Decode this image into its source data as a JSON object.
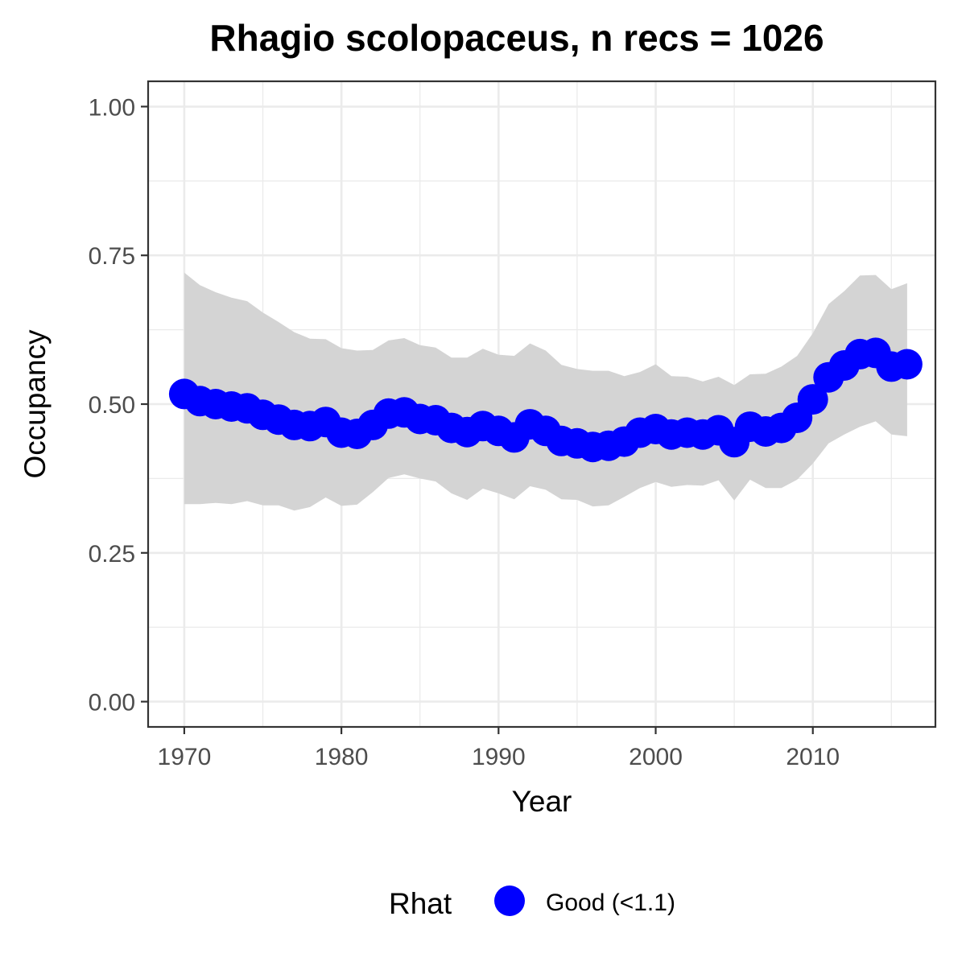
{
  "chart_data": {
    "type": "line",
    "title": "Rhagio scolopaceus, n recs = 1026",
    "xlabel": "Year",
    "ylabel": "Occupancy",
    "xlim": [
      1967.7,
      2017.8
    ],
    "ylim": [
      -0.0425,
      1.0425
    ],
    "x_ticks": [
      1970,
      1980,
      1990,
      2000,
      2010
    ],
    "x_tick_labels": [
      "1970",
      "1980",
      "1990",
      "2000",
      "2010"
    ],
    "y_ticks": [
      0,
      0.25,
      0.5,
      0.75,
      1
    ],
    "y_tick_labels": [
      "0.00",
      "0.25",
      "0.50",
      "0.75",
      "1.00"
    ],
    "grid": true,
    "legend": {
      "title": "Rhat",
      "position": "bottom",
      "entries": [
        {
          "label": "Good (<1.1)",
          "color": "#0000ff"
        }
      ]
    },
    "x": [
      1970,
      1971,
      1972,
      1973,
      1974,
      1975,
      1976,
      1977,
      1978,
      1979,
      1980,
      1981,
      1982,
      1983,
      1984,
      1985,
      1986,
      1987,
      1988,
      1989,
      1990,
      1991,
      1992,
      1993,
      1994,
      1995,
      1996,
      1997,
      1998,
      1999,
      2000,
      2001,
      2002,
      2003,
      2004,
      2005,
      2006,
      2007,
      2008,
      2009,
      2010,
      2011,
      2012,
      2013,
      2014,
      2015,
      2016
    ],
    "series": [
      {
        "values": [
          0.517,
          0.505,
          0.5,
          0.496,
          0.493,
          0.482,
          0.474,
          0.465,
          0.463,
          0.47,
          0.452,
          0.45,
          0.465,
          0.484,
          0.486,
          0.475,
          0.473,
          0.46,
          0.453,
          0.463,
          0.455,
          0.444,
          0.466,
          0.455,
          0.438,
          0.434,
          0.428,
          0.43,
          0.437,
          0.452,
          0.458,
          0.449,
          0.452,
          0.449,
          0.456,
          0.436,
          0.462,
          0.454,
          0.46,
          0.477,
          0.508,
          0.545,
          0.565,
          0.584,
          0.586,
          0.563,
          0.567
        ],
        "lower": [
          0.332,
          0.332,
          0.334,
          0.332,
          0.337,
          0.33,
          0.33,
          0.321,
          0.327,
          0.343,
          0.329,
          0.331,
          0.352,
          0.376,
          0.382,
          0.375,
          0.37,
          0.35,
          0.339,
          0.358,
          0.35,
          0.34,
          0.362,
          0.356,
          0.34,
          0.339,
          0.328,
          0.33,
          0.344,
          0.359,
          0.369,
          0.361,
          0.364,
          0.363,
          0.372,
          0.338,
          0.373,
          0.359,
          0.359,
          0.373,
          0.4,
          0.434,
          0.449,
          0.462,
          0.471,
          0.449,
          0.446
        ],
        "upper": [
          0.721,
          0.7,
          0.688,
          0.679,
          0.673,
          0.654,
          0.638,
          0.621,
          0.61,
          0.609,
          0.594,
          0.59,
          0.591,
          0.607,
          0.611,
          0.599,
          0.595,
          0.578,
          0.578,
          0.593,
          0.583,
          0.581,
          0.602,
          0.59,
          0.566,
          0.559,
          0.556,
          0.556,
          0.547,
          0.554,
          0.567,
          0.547,
          0.546,
          0.538,
          0.546,
          0.532,
          0.55,
          0.551,
          0.563,
          0.581,
          0.619,
          0.668,
          0.69,
          0.716,
          0.717,
          0.693,
          0.703
        ],
        "color": "#0000ff",
        "ribbon_color": "#d4d4d4"
      }
    ]
  }
}
